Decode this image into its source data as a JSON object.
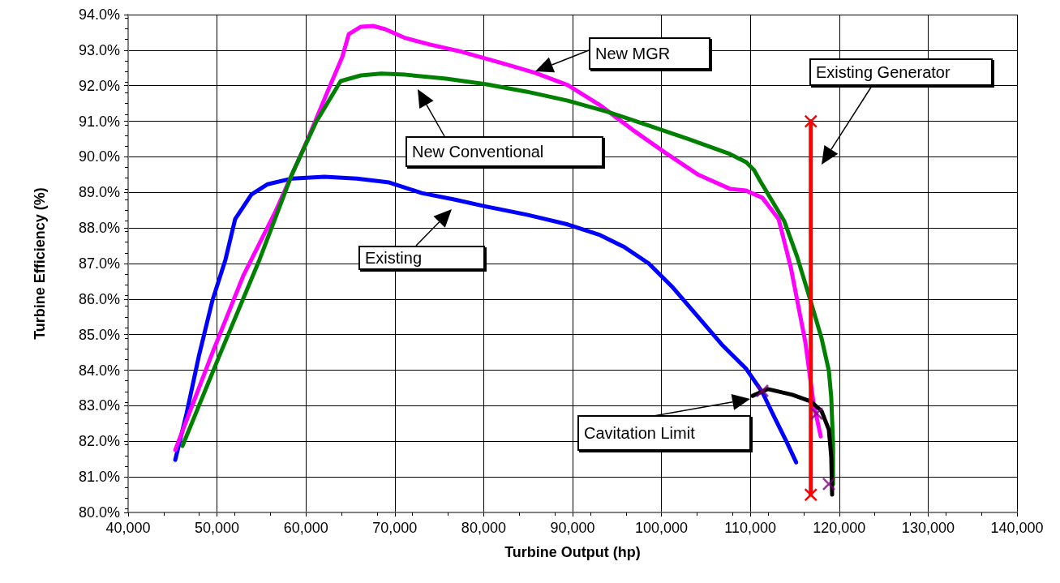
{
  "chart_data": {
    "type": "line",
    "xlabel": "Turbine Output (hp)",
    "ylabel": "Turbine Efficiency (%)",
    "xlim": [
      40000,
      140000
    ],
    "xticks": [
      {
        "value": 40000,
        "label": "40,000"
      },
      {
        "value": 50000,
        "label": "50,000"
      },
      {
        "value": 60000,
        "label": "60,000"
      },
      {
        "value": 70000,
        "label": "70,000"
      },
      {
        "value": 80000,
        "label": "80,000"
      },
      {
        "value": 90000,
        "label": "90,000"
      },
      {
        "value": 100000,
        "label": "100,000"
      },
      {
        "value": 110000,
        "label": "110,000"
      },
      {
        "value": 120000,
        "label": "120,000"
      },
      {
        "value": 130000,
        "label": "130,000"
      },
      {
        "value": 140000,
        "label": "140,000"
      }
    ],
    "ylim": [
      80,
      94
    ],
    "yticks": [
      {
        "value": 80,
        "label": "80.0%"
      },
      {
        "value": 81,
        "label": "81.0%"
      },
      {
        "value": 82,
        "label": "82.0%"
      },
      {
        "value": 83,
        "label": "83.0%"
      },
      {
        "value": 84,
        "label": "84.0%"
      },
      {
        "value": 85,
        "label": "85.0%"
      },
      {
        "value": 86,
        "label": "86.0%"
      },
      {
        "value": 87,
        "label": "87.0%"
      },
      {
        "value": 88,
        "label": "88.0%"
      },
      {
        "value": 89,
        "label": "89.0%"
      },
      {
        "value": 90,
        "label": "90.0%"
      },
      {
        "value": 91,
        "label": "91.0%"
      },
      {
        "value": 92,
        "label": "92.0%"
      },
      {
        "value": 93,
        "label": "93.0%"
      },
      {
        "value": 94,
        "label": "94.0%"
      }
    ],
    "grid": true,
    "marker": "none",
    "line_style": "solid",
    "series": [
      {
        "color": "#0000ff",
        "x": [
          45300,
          46570,
          47940,
          49490,
          50950,
          52040,
          53870,
          55690,
          58430,
          62080,
          65730,
          69380,
          73030,
          76680,
          80330,
          84890,
          89450,
          93100,
          95840,
          98580,
          101300,
          104050,
          106790,
          109530,
          111350,
          112720,
          114090,
          115150
        ],
        "values": [
          81.48,
          82.78,
          84.38,
          85.97,
          87.11,
          88.25,
          88.94,
          89.23,
          89.39,
          89.44,
          89.39,
          89.28,
          88.98,
          88.8,
          88.6,
          88.37,
          88.1,
          87.8,
          87.46,
          87.0,
          86.32,
          85.52,
          84.72,
          84.04,
          83.38,
          82.67,
          81.98,
          81.41
        ]
      },
      {
        "color": "#ff00ff",
        "x": [
          45300,
          49310,
          52960,
          56610,
          60260,
          62540,
          64090,
          64820,
          66190,
          67550,
          68920,
          71200,
          73940,
          77590,
          82150,
          85800,
          89450,
          93100,
          96750,
          100400,
          104050,
          107700,
          109530,
          111350,
          113180,
          114550,
          116200,
          117100,
          117920
        ],
        "values": [
          81.76,
          84.38,
          86.66,
          88.48,
          90.53,
          91.9,
          92.81,
          93.45,
          93.66,
          93.68,
          93.59,
          93.34,
          93.16,
          92.95,
          92.63,
          92.36,
          92.02,
          91.45,
          90.76,
          90.12,
          89.51,
          89.1,
          89.05,
          88.85,
          88.25,
          86.89,
          84.77,
          83.08,
          82.14
        ]
      },
      {
        "color": "#008000",
        "x": [
          46110,
          50220,
          54780,
          58430,
          61170,
          63910,
          66190,
          68470,
          71200,
          75770,
          80330,
          84890,
          89450,
          94010,
          98580,
          103140,
          107700,
          109530,
          110440,
          111080,
          113820,
          115280,
          116820,
          118010,
          118830,
          119100,
          119300,
          119300
        ],
        "values": [
          81.87,
          84.38,
          87.11,
          89.51,
          90.99,
          92.13,
          92.29,
          92.34,
          92.31,
          92.2,
          92.04,
          91.83,
          91.58,
          91.26,
          90.88,
          90.49,
          90.08,
          89.85,
          89.62,
          89.33,
          88.19,
          87.18,
          85.91,
          84.9,
          83.99,
          83.24,
          81.94,
          80.8
        ]
      },
      {
        "color": "#000000",
        "x": [
          110260,
          111990,
          114730,
          116820,
          118010,
          118830,
          119100,
          119200
        ],
        "values": [
          83.28,
          83.47,
          83.31,
          83.12,
          82.85,
          82.33,
          81.57,
          80.5
        ]
      },
      {
        "color": "#ff0000",
        "marker": "cross",
        "x": [
          116800,
          116800
        ],
        "values": [
          91.0,
          80.5
        ]
      },
      {
        "type": "scatter",
        "color": "#800080",
        "marker": "cross",
        "x": [
          111350,
          117460,
          118830
        ],
        "values": [
          83.42,
          82.78,
          80.8
        ]
      }
    ],
    "annotations": [
      "New MGR",
      "New Conventional",
      "Existing",
      "Existing Generator",
      "Cavitation Limit"
    ]
  }
}
